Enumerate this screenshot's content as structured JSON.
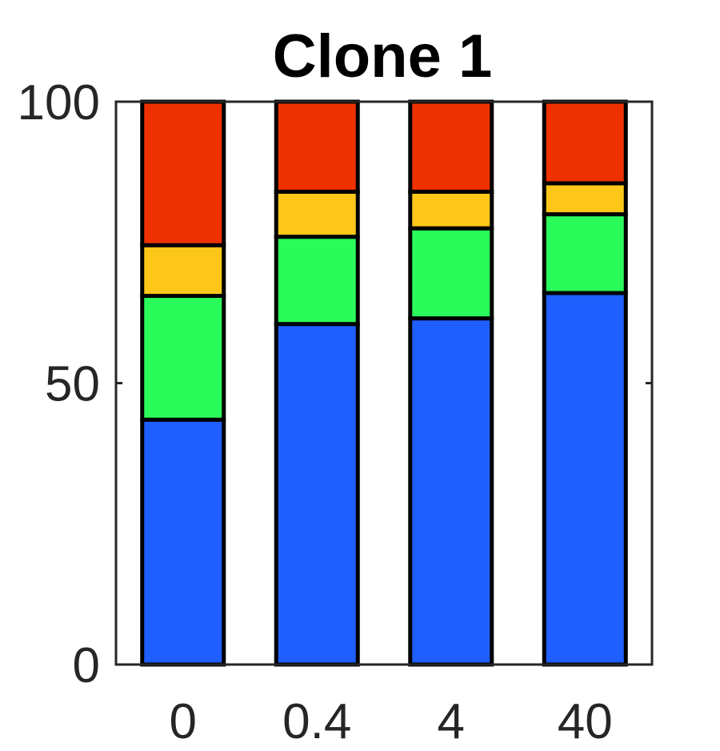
{
  "chart_data": {
    "type": "bar",
    "stacked": true,
    "title": "Clone 1",
    "xlabel": "",
    "ylabel": "",
    "categories": [
      "0",
      "0.4",
      "4",
      "40"
    ],
    "ylim": [
      0,
      100
    ],
    "yticks": [
      0,
      50,
      100
    ],
    "grid": false,
    "series": [
      {
        "color": "#1f5fff",
        "values": [
          43.5,
          60.5,
          61.5,
          66.0
        ]
      },
      {
        "color": "#2afb5a",
        "values": [
          22.0,
          15.5,
          16.0,
          14.0
        ]
      },
      {
        "color": "#fcc719",
        "values": [
          9.0,
          8.0,
          6.5,
          5.5
        ]
      },
      {
        "color": "#ee3100",
        "values": [
          25.5,
          16.0,
          16.0,
          14.5
        ]
      }
    ]
  }
}
